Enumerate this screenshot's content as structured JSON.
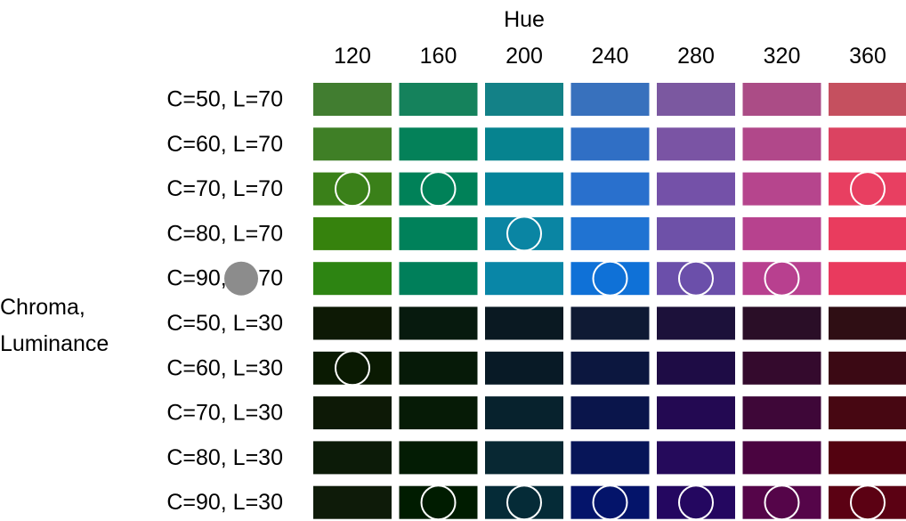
{
  "chart_data": {
    "type": "heatmap",
    "title": "",
    "xlabel": "Hue",
    "ylabel_lines": [
      "Chroma,",
      "Luminance"
    ],
    "x": [
      "120",
      "160",
      "200",
      "240",
      "280",
      "320",
      "360"
    ],
    "y": [
      "C=50, L=70",
      "C=60, L=70",
      "C=70, L=70",
      "C=80, L=70",
      "C=90, L=70",
      "C=50, L=30",
      "C=60, L=30",
      "C=70, L=30",
      "C=80, L=30",
      "C=90, L=30"
    ],
    "cells": [
      [
        "#417D30",
        "#15825C",
        "#138187",
        "#3871BD",
        "#7B58A0",
        "#AB4C86",
        "#C5505F"
      ],
      [
        "#3F7F26",
        "#048159",
        "#06838F",
        "#306FC5",
        "#7A54A4",
        "#B1488A",
        "#DB4361"
      ],
      [
        "#3A8019",
        "#008158",
        "#05849A",
        "#2970CD",
        "#7451A8",
        "#B6458D",
        "#E83F61"
      ],
      [
        "#36820D",
        "#00815A",
        "#0A85A3",
        "#2073D2",
        "#6E51A8",
        "#B7428E",
        "#E93C5E"
      ],
      [
        "#2D8412",
        "#007F5A",
        "#0986A7",
        "#0F71D7",
        "#6B4FAA",
        "#B8408F",
        "#E93A5E"
      ],
      [
        "#0D1905",
        "#071A0E",
        "#0A1922",
        "#0F1A34",
        "#1C113A",
        "#2A0E27",
        "#2F0E14"
      ],
      [
        "#0A1A02",
        "#061A08",
        "#081A26",
        "#0C173F",
        "#1E0C45",
        "#340A2D",
        "#3B0914"
      ],
      [
        "#0D1906",
        "#061B06",
        "#07222D",
        "#0A154B",
        "#230952",
        "#3E0738",
        "#470712"
      ],
      [
        "#0C1B08",
        "#031C04",
        "#082833",
        "#071558",
        "#250A5B",
        "#4A0440",
        "#530210"
      ],
      [
        "#0E1B09",
        "#001C00",
        "#052B37",
        "#04146A",
        "#240760",
        "#550549",
        "#5B0113"
      ]
    ],
    "markers": [
      {
        "row": "C=70, L=70",
        "col": "120"
      },
      {
        "row": "C=70, L=70",
        "col": "160"
      },
      {
        "row": "C=70, L=70",
        "col": "360"
      },
      {
        "row": "C=80, L=70",
        "col": "200"
      },
      {
        "row": "C=90, L=70",
        "col": "240"
      },
      {
        "row": "C=90, L=70",
        "col": "280"
      },
      {
        "row": "C=90, L=70",
        "col": "320"
      },
      {
        "row": "C=60, L=30",
        "col": "120"
      },
      {
        "row": "C=90, L=30",
        "col": "160"
      },
      {
        "row": "C=90, L=30",
        "col": "200"
      },
      {
        "row": "C=90, L=30",
        "col": "240"
      },
      {
        "row": "C=90, L=30",
        "col": "280"
      },
      {
        "row": "C=90, L=30",
        "col": "320"
      },
      {
        "row": "C=90, L=30",
        "col": "360"
      }
    ],
    "grey_marker": {
      "row": "C=90, L=70",
      "color": "#8C8C8C"
    },
    "marker_stroke": "#FFFFFF",
    "background": "#FFFFFF"
  }
}
